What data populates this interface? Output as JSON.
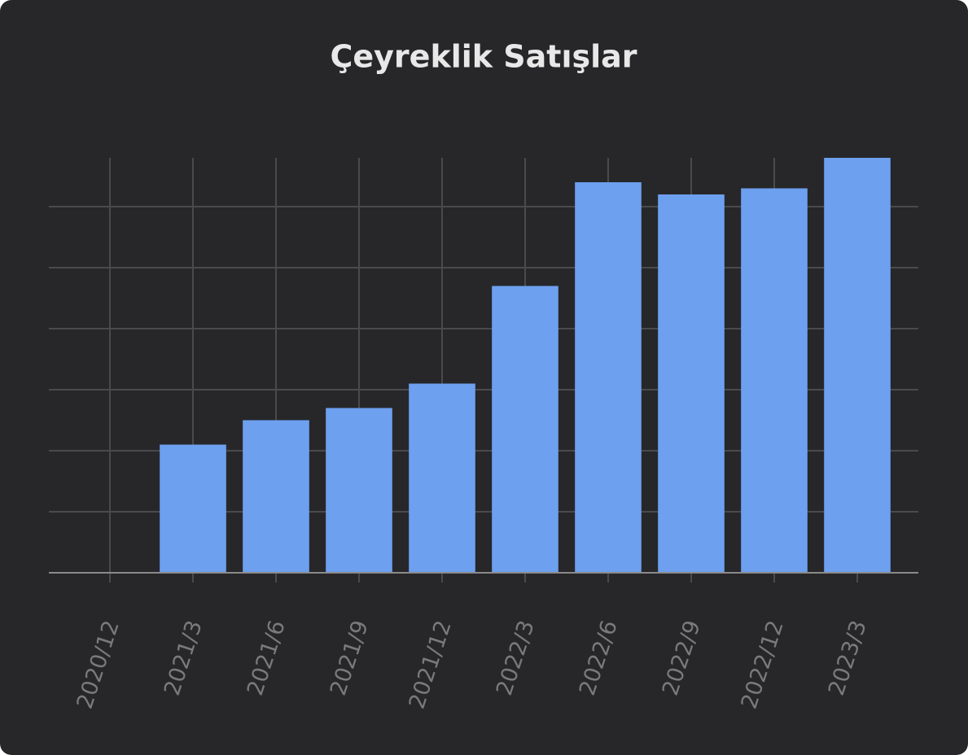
{
  "chart_data": {
    "type": "bar",
    "title": "Çeyreklik Satışlar",
    "categories": [
      "2020/12",
      "2021/3",
      "2021/6",
      "2021/9",
      "2021/12",
      "2022/3",
      "2022/6",
      "2022/9",
      "2022/12",
      "2023/3"
    ],
    "values": [
      0,
      2.1,
      2.5,
      2.7,
      3.1,
      4.7,
      6.4,
      6.2,
      6.3,
      6.8
    ],
    "color": "#6ea0f0",
    "ylim": [
      0,
      6.8
    ],
    "yticks": [
      0,
      1,
      2,
      3,
      4,
      5,
      6
    ],
    "grid": true,
    "ytick_labels": false
  }
}
